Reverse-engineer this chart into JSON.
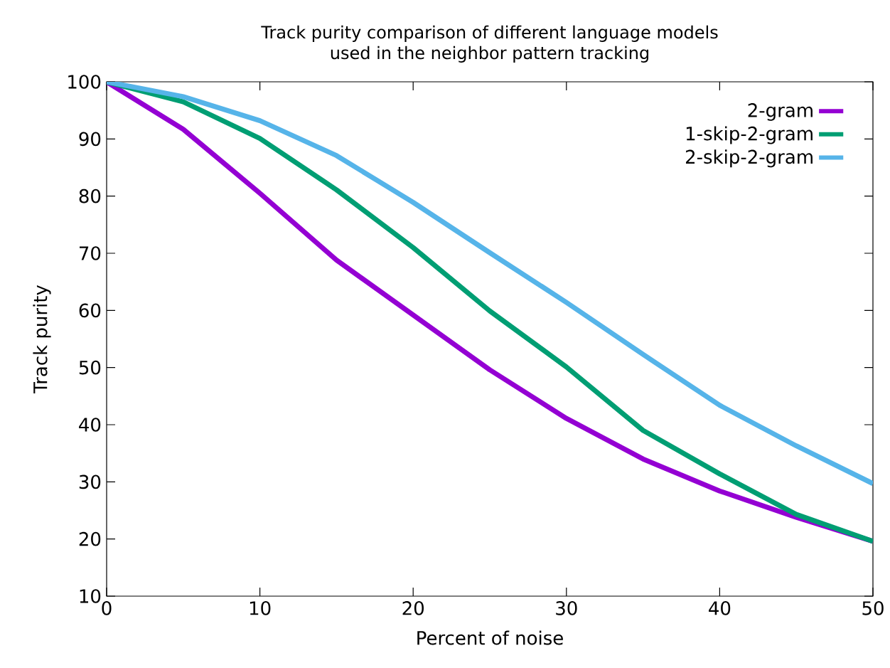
{
  "chart_data": {
    "type": "line",
    "title": "Track purity comparison of different language models\nused in the neighbor pattern tracking",
    "xlabel": "Percent of noise",
    "ylabel": "Track purity",
    "x": [
      0,
      5,
      10,
      15,
      20,
      25,
      30,
      35,
      40,
      45,
      50
    ],
    "series": [
      {
        "name": "2-gram",
        "color": "#9400d3",
        "values": [
          100,
          91.7,
          80.5,
          68.8,
          59.2,
          49.6,
          41.1,
          34.0,
          28.4,
          23.8,
          19.6
        ]
      },
      {
        "name": "1-skip-2-gram",
        "color": "#009e73",
        "values": [
          100,
          96.5,
          90.1,
          81.1,
          71.0,
          59.9,
          50.1,
          39.0,
          31.4,
          24.3,
          19.6
        ]
      },
      {
        "name": "2-skip-2-gram",
        "color": "#56b4e9",
        "values": [
          100,
          97.4,
          93.2,
          87.1,
          78.9,
          70.1,
          61.4,
          52.3,
          43.4,
          36.3,
          29.7
        ]
      }
    ],
    "xlim": [
      0,
      50
    ],
    "xticks": [
      0,
      10,
      20,
      30,
      40,
      50
    ],
    "ylim": [
      10,
      100
    ],
    "yticks": [
      10,
      20,
      30,
      40,
      50,
      60,
      70,
      80,
      90,
      100
    ],
    "grid": false,
    "legend": "top right",
    "marker": "none",
    "line_style": "solid"
  }
}
